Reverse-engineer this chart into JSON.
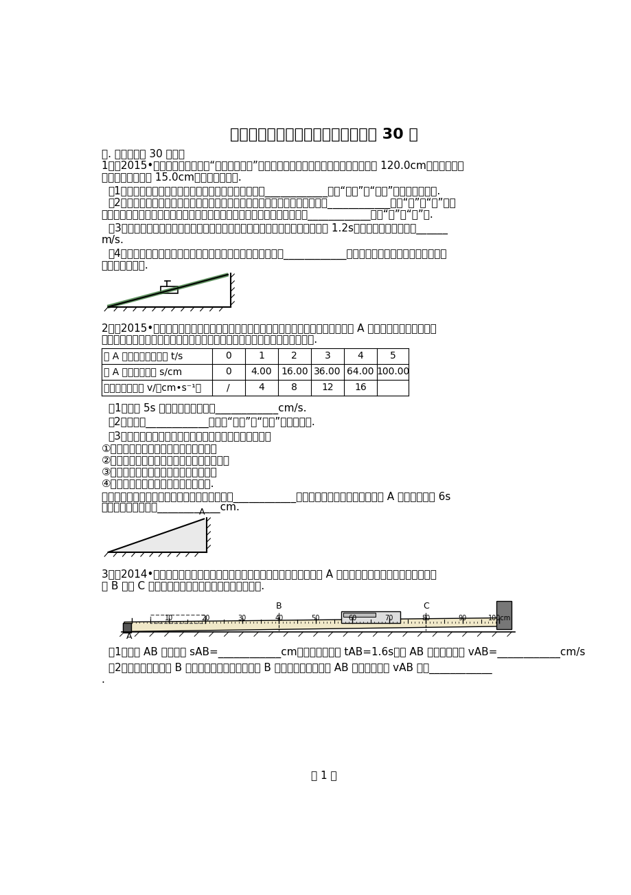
{
  "title": "物理实验测平均速度和密度测量实验 30 题",
  "bg": "#ffffff",
  "fg": "#000000",
  "section": "一. 解答题（共 30 小题）",
  "q1_line1": "1．（2015•乌鲁木齐）如图，在“测量平均速度”的实验中，提供的实验器材有：木板（长为 120.0cm，底端有金属",
  "q1_line2": "挡板）、小车（长 15.0cm）、秒表、木块.",
  "q1_p1": "（1）实验时应保持斜面的倾角较小，这是为了减小测量____________（填“路程”或“时间”）时造成的误差.",
  "q1_p2a": "（2）斜面倾角不变时，小车由静止释放，小车通过的路程越长，其平均速度越____________（填“大”或“小”）；",
  "q1_p2b": "小车由静止释放，通过相同路程，斜面的倾角越大，小车运动的平均速度越____________（填“大”或“小”）.",
  "q1_p3a": "（3）一次实验中，小华测得小车从静止开始运动到两个车长的距离所用时间为 1.2s，则小车的平均速度为______",
  "q1_p3b": "m/s.",
  "q1_p4a": "（4）若保持斜面倾角不变，利用本实验提供的器材最多可测出____________组小车由静止释放到撞击金属挡板过",
  "q1_p4b": "程中的平均速度.",
  "q2_line1": "2．（2015•淮安）为研究小物块在足够长斜面上的运动规律，小物块每次均从斜面上 A 点由静止释放，沿斜面向",
  "q2_line2": "下运动，利用秒表和刻度尺测出其运动时间和通过的路程，记录的数据如下表.",
  "tbl_r1": [
    "从 A 点开始计时的时间 t/s",
    "0",
    "1",
    "2",
    "3",
    "4",
    "5"
  ],
  "tbl_r2": [
    "从 A 点开始的路程 s/cm",
    "0",
    "4.00",
    "16.00",
    "36.00",
    "64.00",
    "100.00"
  ],
  "tbl_r3": [
    "相应的平均速度 v/（cm•s⁻¹）",
    "/",
    "4",
    "8",
    "12",
    "16",
    ""
  ],
  "q2_p1": "（1）物块 5s 时间内的平均速度为____________cm/s.",
  "q2_p2": "（2）物块做____________（选填“匀速”或“变速”）直线运动.",
  "q2_p3": "（3）实验前，小萌对物块的运动情况作了以下可能猜想：",
  "q2_p3a": "①物块通过的路程与所用的时间成正比；",
  "q2_p3b": "②物块通过的路程与所用的时间平方成正比；",
  "q2_p3c": "③物块的平均速度与所用的时间成正比；",
  "q2_p3d": "④物块的平均速度与通过的路程成正比.",
  "q2_p4a": "根据表格中的数据，你认为上述猜想中正确的是____________（选填序号），并推测：物块自 A 点开始计时的 6s",
  "q2_p4b": "时间内通过的路程为____________cm.",
  "q3_line1": "3．（2014•河南）如图在斜面上测量小车运动的平均速度．让小车从斜面 A 点由静止开始下滑，分别测出小车到",
  "q3_line2": "达 B 点和 C 点的时间，即可测出不同阶段的平均速度.",
  "q3_p1": "（1）图中 AB 段的路程 sAB=____________cm，如果测得时间 tAB=1.6s，则 AB 段的平均速度 vAB=____________cm/s",
  "q3_p2a": "（2）在测量小车到达 B 点的时间时，如果小车过了 B 点才停止记时，测得 AB 段的平均速度 vAB 会偏____________",
  "q3_p2b": ".",
  "page": "第 1 页"
}
